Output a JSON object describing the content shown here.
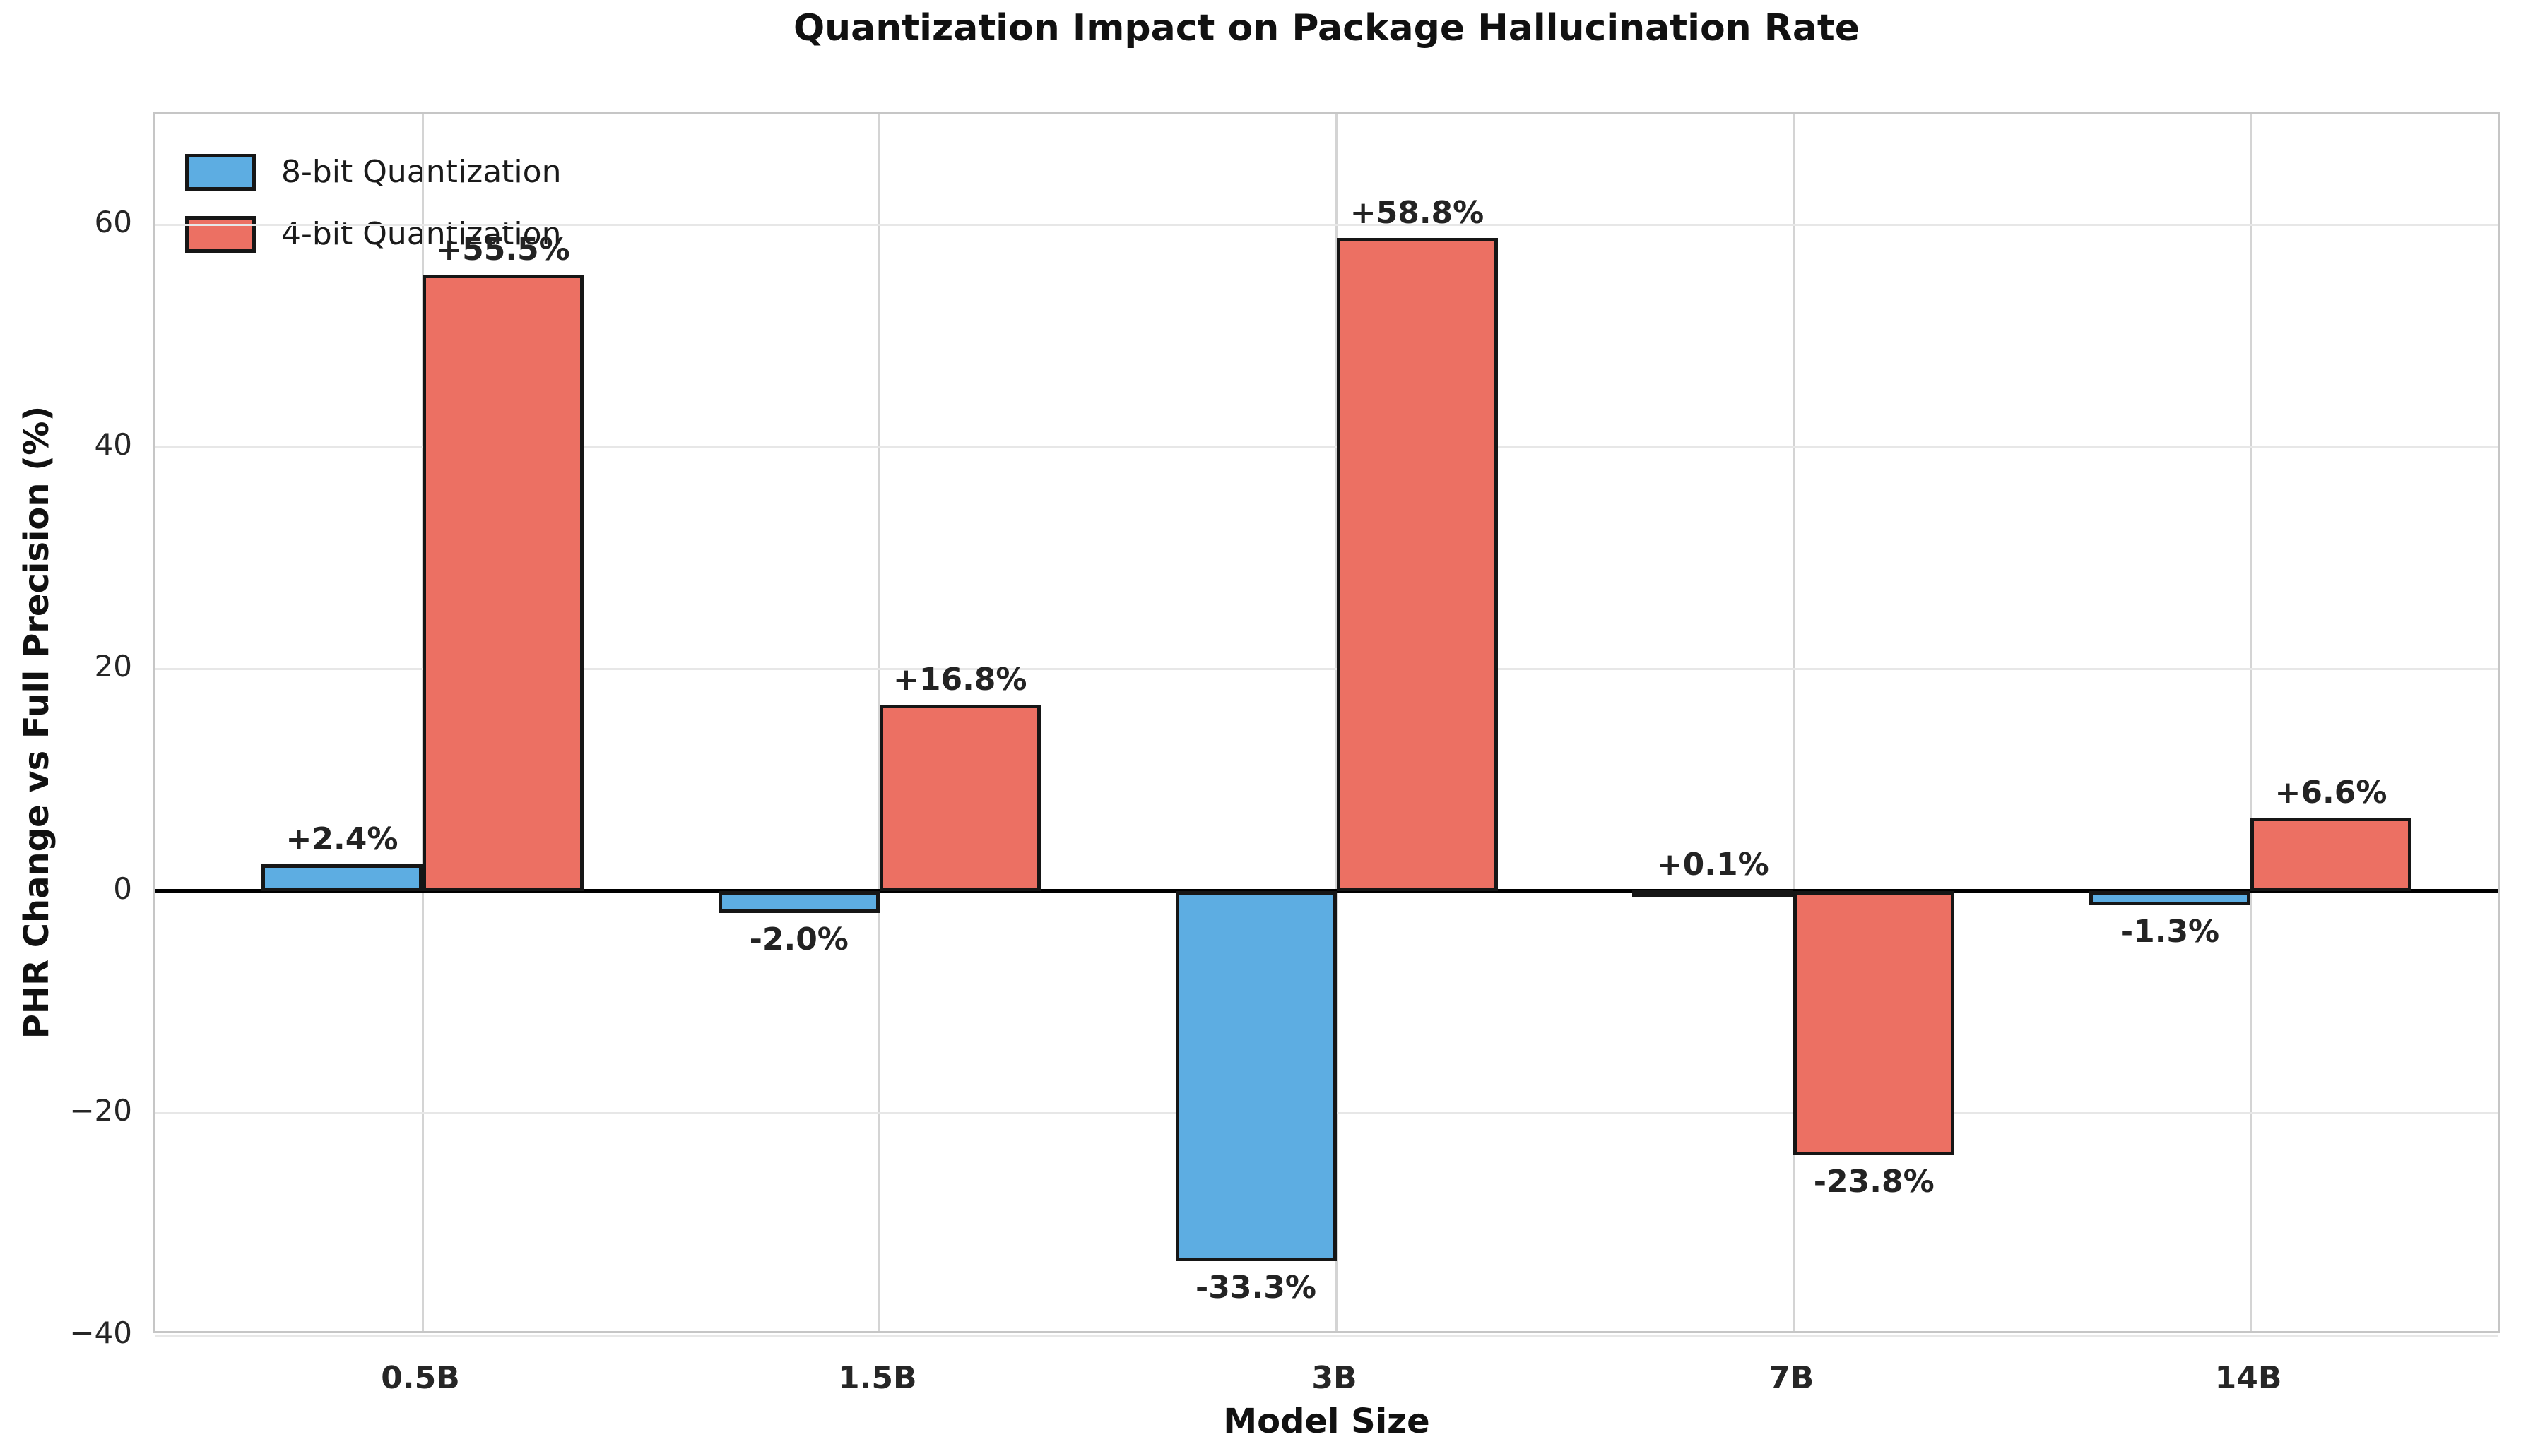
{
  "title": "Quantization Impact on Package Hallucination Rate",
  "chart_data": {
    "type": "bar",
    "title": "Quantization Impact on Package Hallucination Rate",
    "xlabel": "Model Size",
    "ylabel": "PHR Change vs Full Precision (%)",
    "categories": [
      "0.5B",
      "1.5B",
      "3B",
      "7B",
      "14B"
    ],
    "series": [
      {
        "name": "8-bit Quantization",
        "color": "#5DADE2",
        "values": [
          2.4,
          -2.0,
          -33.3,
          0.1,
          -1.3
        ],
        "labels": [
          "+2.4%",
          "-2.0%",
          "-33.3%",
          "+0.1%",
          "-1.3%"
        ]
      },
      {
        "name": "4-bit Quantization",
        "color": "#EC7063",
        "values": [
          55.5,
          16.8,
          58.8,
          -23.8,
          6.6
        ],
        "labels": [
          "+55.5%",
          "+16.8%",
          "+58.8%",
          "-23.8%",
          "+6.6%"
        ]
      }
    ],
    "ylim": [
      -40,
      70
    ],
    "yticks": [
      {
        "value": 60,
        "label": "60"
      },
      {
        "value": 40,
        "label": "40"
      },
      {
        "value": 20,
        "label": "20"
      },
      {
        "value": 0,
        "label": "0"
      },
      {
        "value": -20,
        "label": "−20"
      },
      {
        "value": -40,
        "label": "−40"
      }
    ],
    "grid": true,
    "legend_position": "upper left",
    "zero_line": true,
    "bar_edge_color": "#161616",
    "grid_color_h": "#e7e7e7",
    "grid_color_v": "#d4d4d4",
    "spine_color": "#c6c6c6"
  }
}
